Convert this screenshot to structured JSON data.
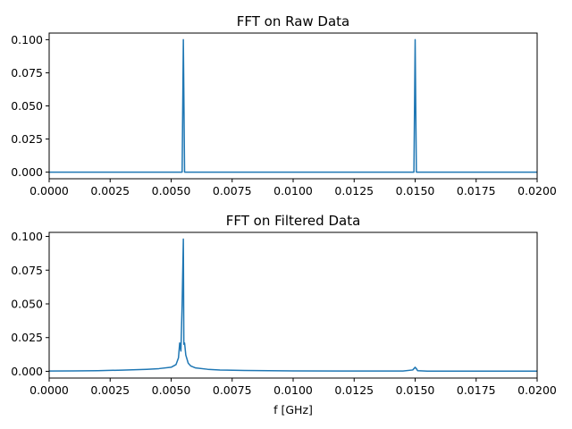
{
  "chart_data": [
    {
      "type": "line",
      "title": "FFT on Raw Data",
      "xlabel": "",
      "ylabel": "",
      "xlim": [
        0,
        0.02
      ],
      "ylim": [
        -0.005,
        0.105
      ],
      "xticks": [
        0,
        0.0025,
        0.005,
        0.0075,
        0.01,
        0.0125,
        0.015,
        0.0175,
        0.02
      ],
      "xtick_labels": [
        "0.0000",
        "0.0025",
        "0.0050",
        "0.0075",
        "0.0100",
        "0.0125",
        "0.0150",
        "0.0175",
        "0.0200"
      ],
      "yticks": [
        0,
        0.025,
        0.05,
        0.075,
        0.1
      ],
      "ytick_labels": [
        "0.000",
        "0.025",
        "0.050",
        "0.075",
        "0.100"
      ],
      "grid": false,
      "series_color": "#1f77b4",
      "x": [
        0,
        0.0054,
        0.00545,
        0.0055,
        0.00555,
        0.0056,
        0.0149,
        0.01495,
        0.015,
        0.01505,
        0.0151,
        0.02
      ],
      "y": [
        0,
        0,
        0,
        0.1,
        0,
        0,
        0,
        0,
        0.1,
        0,
        0,
        0
      ]
    },
    {
      "type": "line",
      "title": "FFT on Filtered Data",
      "xlabel": "f [GHz]",
      "ylabel": "",
      "xlim": [
        0,
        0.02
      ],
      "ylim": [
        -0.005,
        0.103
      ],
      "xticks": [
        0,
        0.0025,
        0.005,
        0.0075,
        0.01,
        0.0125,
        0.015,
        0.0175,
        0.02
      ],
      "xtick_labels": [
        "0.0000",
        "0.0025",
        "0.0050",
        "0.0075",
        "0.0100",
        "0.0125",
        "0.0150",
        "0.0175",
        "0.0200"
      ],
      "yticks": [
        0,
        0.025,
        0.05,
        0.075,
        0.1
      ],
      "ytick_labels": [
        "0.000",
        "0.025",
        "0.050",
        "0.075",
        "0.100"
      ],
      "grid": false,
      "series_color": "#1f77b4",
      "x": [
        0,
        0.001,
        0.002,
        0.003,
        0.004,
        0.0045,
        0.005,
        0.0052,
        0.0053,
        0.00535,
        0.0054,
        0.00545,
        0.0055,
        0.00552,
        0.00555,
        0.0056,
        0.0057,
        0.0058,
        0.006,
        0.0065,
        0.007,
        0.008,
        0.01,
        0.012,
        0.0145,
        0.0149,
        0.01495,
        0.015,
        0.01505,
        0.0151,
        0.0155,
        0.02
      ],
      "y": [
        0.0002,
        0.0003,
        0.0005,
        0.0009,
        0.0015,
        0.002,
        0.003,
        0.005,
        0.01,
        0.021,
        0.015,
        0.05,
        0.098,
        0.02,
        0.021,
        0.012,
        0.006,
        0.004,
        0.0025,
        0.0015,
        0.001,
        0.0006,
        0.0003,
        0.0002,
        0.0002,
        0.001,
        0.002,
        0.003,
        0.002,
        0.0005,
        0.0001,
        0.0001
      ]
    }
  ]
}
